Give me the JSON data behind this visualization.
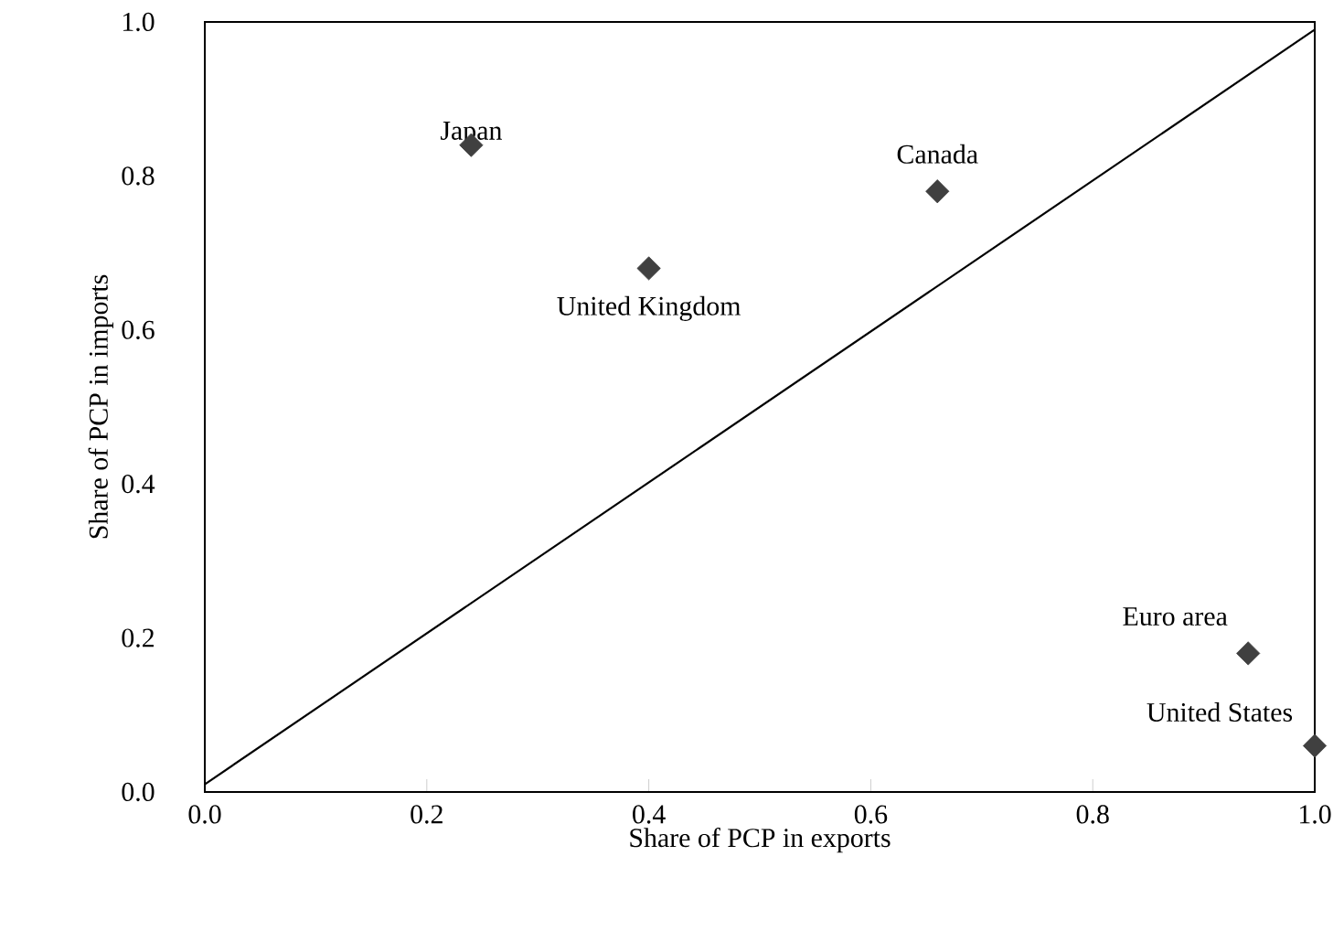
{
  "chart_data": {
    "type": "scatter",
    "xlabel": "Share of PCP in exports",
    "ylabel": "Share of PCP in imports",
    "series": [
      {
        "color": "#404040",
        "marker": "diamond",
        "x": [
          0.24,
          0.4,
          0.66,
          0.94,
          1.0
        ],
        "values": [
          0.84,
          0.68,
          0.78,
          0.18,
          0.06
        ]
      },
      {
        "type": "line",
        "color": "#000000",
        "x": [
          0,
          1
        ],
        "values": [
          0.01,
          0.99
        ]
      }
    ],
    "annotations": [
      {
        "text": "Japan",
        "x": 0.24,
        "y": 0.84
      },
      {
        "text": "United Kingdom",
        "x": 0.4,
        "y": 0.68
      },
      {
        "text": "Canada",
        "x": 0.66,
        "y": 0.78
      },
      {
        "text": "Euro area",
        "x": 0.94,
        "y": 0.18
      },
      {
        "text": "United States",
        "x": 1.0,
        "y": 0.06
      }
    ],
    "xlim": [
      0,
      1
    ],
    "ylim": [
      0,
      1
    ],
    "xticks": [
      {
        "value": 0,
        "label": "0.0"
      },
      0.2,
      0.4,
      0.6,
      0.8,
      {
        "value": 1,
        "label": "1.0"
      }
    ],
    "yticks": [
      {
        "value": 0,
        "label": "0.0"
      },
      0.2,
      0.4,
      0.6,
      0.8,
      {
        "value": 1,
        "label": "1.0"
      }
    ],
    "grid": false
  }
}
